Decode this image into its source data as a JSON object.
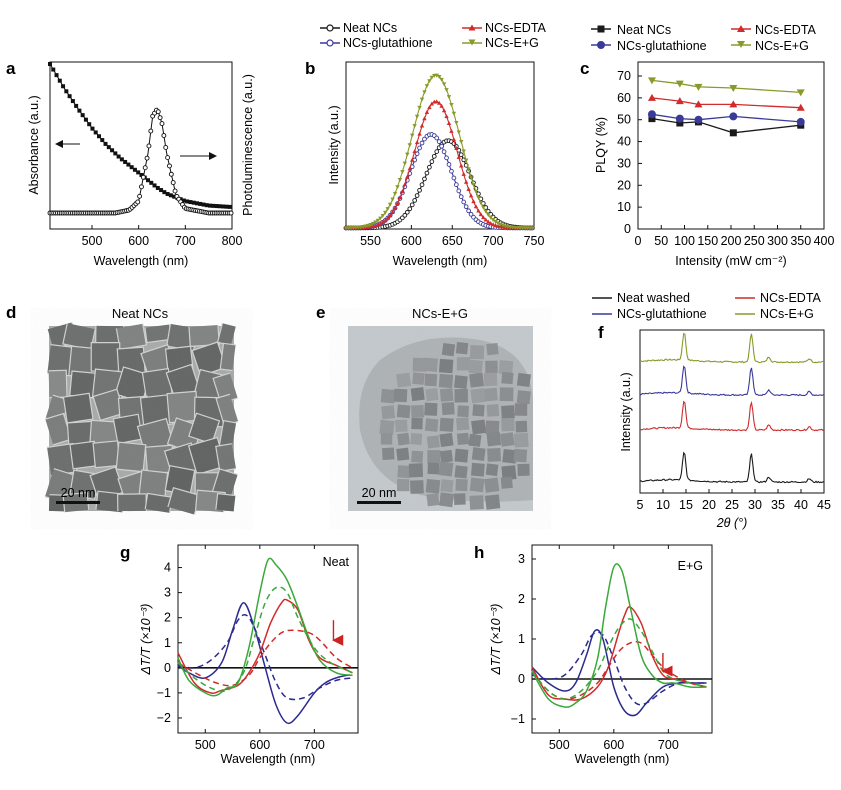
{
  "panels": {
    "a": {
      "letter": "a"
    },
    "b": {
      "letter": "b"
    },
    "c": {
      "letter": "c"
    },
    "d": {
      "letter": "d",
      "title": "Neat NCs",
      "scale_bar": "20 nm"
    },
    "e": {
      "letter": "e",
      "title": "NCs-E+G",
      "scale_bar": "20 nm"
    },
    "f": {
      "letter": "f"
    },
    "g": {
      "letter": "g",
      "inset": "Neat"
    },
    "h": {
      "letter": "h",
      "inset": "E+G"
    }
  },
  "colors": {
    "neat": "#1a1a1a",
    "glutathione": "#3a3a99",
    "edta": "#d12b2b",
    "eg": "#8a9a2a",
    "g_blue": "#2b2b8f",
    "g_red": "#d12b2b",
    "g_green": "#3aa83a",
    "arrow": "#cc2222"
  },
  "legends": {
    "b": [
      "Neat NCs",
      "NCs-EDTA",
      "NCs-glutathione",
      "NCs-E+G"
    ],
    "c": [
      "Neat NCs",
      "NCs-EDTA",
      "NCs-glutathione",
      "NCs-E+G"
    ],
    "f": [
      "Neat washed",
      "NCs-EDTA",
      "NCs-glutathione",
      "NCs-E+G"
    ]
  },
  "chart_data": [
    {
      "id": "a",
      "type": "line",
      "xlabel": "Wavelength (nm)",
      "ylabel_left": "Absorbance (a.u.)",
      "ylabel_right": "Photoluminescence (a.u.)",
      "xlim": [
        410,
        800
      ],
      "xticks": [
        500,
        600,
        700,
        800
      ],
      "series": [
        {
          "name": "Absorbance",
          "x": [
            410,
            440,
            470,
            500,
            530,
            560,
            580,
            600,
            620,
            640,
            660,
            700,
            750,
            800
          ],
          "y": [
            1.0,
            0.84,
            0.7,
            0.57,
            0.46,
            0.37,
            0.32,
            0.27,
            0.22,
            0.17,
            0.13,
            0.08,
            0.05,
            0.04
          ]
        },
        {
          "name": "Photoluminescence",
          "x": [
            410,
            550,
            580,
            600,
            620,
            630,
            640,
            650,
            660,
            680,
            700,
            750,
            800
          ],
          "y": [
            0,
            0,
            0.02,
            0.08,
            0.4,
            0.65,
            0.7,
            0.6,
            0.4,
            0.12,
            0.03,
            0,
            0
          ]
        }
      ]
    },
    {
      "id": "b",
      "type": "line",
      "xlabel": "Wavelength (nm)",
      "ylabel": "Intensity (a.u.)",
      "xlim": [
        520,
        750
      ],
      "xticks": [
        550,
        600,
        650,
        700,
        750
      ],
      "ylim": [
        0,
        1
      ],
      "series": [
        {
          "name": "Neat NCs",
          "peak": 645,
          "width": 27,
          "height": 0.56
        },
        {
          "name": "NCs-glutathione",
          "peak": 624,
          "width": 25,
          "height": 0.6
        },
        {
          "name": "NCs-EDTA",
          "peak": 630,
          "width": 26,
          "height": 0.81
        },
        {
          "name": "NCs-E+G",
          "peak": 630,
          "width": 29,
          "height": 0.98
        }
      ]
    },
    {
      "id": "c",
      "type": "line",
      "xlabel": "Intensity (mW cm⁻²)",
      "ylabel": "PLQY (%)",
      "xlim": [
        0,
        400
      ],
      "ylim": [
        0,
        70
      ],
      "xticks": [
        0,
        50,
        100,
        150,
        200,
        250,
        300,
        350,
        400
      ],
      "yticks": [
        0,
        10,
        20,
        30,
        40,
        50,
        60,
        70
      ],
      "x": [
        30,
        90,
        130,
        205,
        350
      ],
      "series": [
        {
          "name": "Neat NCs",
          "values": [
            50.5,
            48.5,
            49,
            44,
            47.5
          ]
        },
        {
          "name": "NCs-glutathione",
          "values": [
            52.5,
            50.5,
            50,
            51.5,
            49
          ]
        },
        {
          "name": "NCs-EDTA",
          "values": [
            60,
            58.5,
            57,
            57,
            55.5
          ]
        },
        {
          "name": "NCs-E+G",
          "values": [
            68,
            66.5,
            65,
            64.5,
            62.5
          ]
        }
      ]
    },
    {
      "id": "f",
      "type": "line",
      "xlabel": "2θ (°)",
      "ylabel": "Intensity (a.u.)",
      "xlim": [
        5,
        45
      ],
      "xticks": [
        5,
        10,
        15,
        20,
        25,
        30,
        35,
        40,
        45
      ],
      "peaks": [
        {
          "x": 14.6,
          "h": 1.0
        },
        {
          "x": 29.2,
          "h": 1.0
        },
        {
          "x": 33.0,
          "h": 0.18
        },
        {
          "x": 41.8,
          "h": 0.12
        }
      ],
      "series": [
        {
          "name": "NCs-E+G"
        },
        {
          "name": "NCs-glutathione"
        },
        {
          "name": "NCs-EDTA"
        },
        {
          "name": "Neat washed"
        }
      ]
    },
    {
      "id": "g",
      "type": "line",
      "xlabel": "Wavelength (nm)",
      "ylabel": "ΔT/T (×10⁻³)",
      "xlim": [
        450,
        780
      ],
      "ylim": [
        -2.6,
        4.9
      ],
      "xticks": [
        500,
        600,
        700
      ],
      "yticks": [
        -2,
        -1,
        0,
        1,
        2,
        3,
        4
      ],
      "series": [
        {
          "color": "blue",
          "style": "solid",
          "x": [
            450,
            470,
            500,
            530,
            550,
            570,
            590,
            610,
            630,
            650,
            670,
            700,
            720,
            740,
            760,
            770
          ],
          "y": [
            0.1,
            -0.2,
            -0.4,
            0.2,
            1.5,
            2.6,
            1.6,
            0.0,
            -1.5,
            -2.2,
            -1.9,
            -1.0,
            -0.6,
            -0.4,
            -0.3,
            -0.3
          ]
        },
        {
          "color": "blue",
          "style": "dashed",
          "x": [
            450,
            480,
            510,
            540,
            560,
            575,
            590,
            610,
            630,
            650,
            680,
            710,
            740,
            770
          ],
          "y": [
            0.1,
            0.0,
            0.3,
            1.0,
            1.9,
            2.1,
            1.6,
            0.5,
            -0.6,
            -1.2,
            -1.2,
            -0.8,
            -0.5,
            -0.4
          ]
        },
        {
          "color": "red",
          "style": "solid",
          "x": [
            450,
            480,
            510,
            530,
            560,
            580,
            600,
            620,
            640,
            650,
            670,
            690,
            710,
            740,
            760,
            770
          ],
          "y": [
            0.6,
            -0.6,
            -1.0,
            -0.9,
            -0.7,
            -0.2,
            0.6,
            1.8,
            2.6,
            2.7,
            2.3,
            1.1,
            0.4,
            0.1,
            -0.1,
            -0.2
          ]
        },
        {
          "color": "red",
          "style": "dashed",
          "x": [
            450,
            490,
            520,
            550,
            580,
            600,
            620,
            640,
            660,
            690,
            710,
            740,
            770
          ],
          "y": [
            0.2,
            -0.3,
            -0.6,
            -0.7,
            -0.3,
            0.4,
            1.0,
            1.4,
            1.5,
            1.4,
            1.1,
            0.4,
            0.0
          ]
        },
        {
          "color": "green",
          "style": "solid",
          "x": [
            450,
            470,
            500,
            520,
            540,
            560,
            580,
            600,
            615,
            630,
            650,
            670,
            690,
            710,
            740,
            770
          ],
          "y": [
            0.4,
            -0.5,
            -1.0,
            -1.1,
            -0.8,
            -0.6,
            0.8,
            3.0,
            4.3,
            4.1,
            3.5,
            2.4,
            1.2,
            0.3,
            -0.2,
            -0.3
          ]
        },
        {
          "color": "green",
          "style": "dashed",
          "x": [
            450,
            480,
            510,
            540,
            570,
            590,
            610,
            630,
            650,
            670,
            700,
            730,
            760,
            770
          ],
          "y": [
            0.2,
            -0.4,
            -0.8,
            -0.9,
            -0.2,
            1.2,
            2.6,
            3.2,
            3.0,
            2.0,
            0.8,
            0.2,
            -0.1,
            -0.2
          ]
        }
      ],
      "arrow_x": 735,
      "arrow_y_top": 1.9,
      "arrow_y_bottom": 1.1
    },
    {
      "id": "h",
      "type": "line",
      "xlabel": "Wavelength (nm)",
      "ylabel": "ΔT/T (×10⁻³)",
      "xlim": [
        450,
        780
      ],
      "ylim": [
        -1.35,
        3.35
      ],
      "xticks": [
        500,
        600,
        700
      ],
      "yticks": [
        -1,
        0,
        1,
        2,
        3
      ],
      "series": [
        {
          "color": "blue",
          "style": "solid",
          "x": [
            450,
            480,
            510,
            530,
            550,
            565,
            580,
            600,
            620,
            640,
            660,
            690,
            720,
            750,
            770
          ],
          "y": [
            0.3,
            -0.1,
            -0.3,
            -0.1,
            0.6,
            1.2,
            1.0,
            -0.2,
            -0.8,
            -0.9,
            -0.6,
            -0.2,
            -0.1,
            -0.1,
            -0.1
          ]
        },
        {
          "color": "blue",
          "style": "dashed",
          "x": [
            450,
            480,
            510,
            540,
            560,
            580,
            600,
            620,
            640,
            660,
            690,
            720,
            750,
            770
          ],
          "y": [
            0.1,
            0.0,
            0.1,
            0.6,
            1.1,
            1.1,
            0.5,
            -0.2,
            -0.6,
            -0.6,
            -0.3,
            -0.1,
            -0.1,
            -0.1
          ]
        },
        {
          "color": "red",
          "style": "solid",
          "x": [
            450,
            480,
            510,
            540,
            570,
            590,
            610,
            620,
            630,
            650,
            670,
            690,
            710,
            740,
            770
          ],
          "y": [
            0.3,
            -0.4,
            -0.5,
            -0.5,
            -0.2,
            0.3,
            1.2,
            1.6,
            1.8,
            1.4,
            0.6,
            0.1,
            0.0,
            -0.1,
            -0.2
          ]
        },
        {
          "color": "red",
          "style": "dashed",
          "x": [
            450,
            480,
            510,
            540,
            570,
            590,
            610,
            630,
            650,
            670,
            690,
            710,
            740,
            770
          ],
          "y": [
            0.2,
            -0.3,
            -0.5,
            -0.4,
            -0.1,
            0.3,
            0.7,
            0.9,
            0.9,
            0.6,
            0.3,
            0.1,
            -0.1,
            -0.2
          ]
        },
        {
          "color": "green",
          "style": "solid",
          "x": [
            450,
            480,
            510,
            530,
            550,
            570,
            585,
            600,
            615,
            630,
            650,
            670,
            690,
            710,
            740,
            770
          ],
          "y": [
            0.2,
            -0.5,
            -0.7,
            -0.6,
            -0.3,
            0.5,
            1.8,
            2.8,
            2.7,
            1.8,
            0.6,
            0.1,
            -0.1,
            -0.1,
            -0.2,
            -0.2
          ]
        },
        {
          "color": "green",
          "style": "dashed",
          "x": [
            450,
            480,
            510,
            540,
            570,
            590,
            610,
            630,
            650,
            670,
            690,
            710,
            740,
            770
          ],
          "y": [
            0.2,
            -0.3,
            -0.5,
            -0.3,
            0.2,
            0.8,
            1.3,
            1.5,
            1.2,
            0.7,
            0.2,
            0.0,
            -0.1,
            -0.2
          ]
        }
      ],
      "arrow_x": 690,
      "arrow_y_top": 0.65,
      "arrow_y_bottom": 0.2
    }
  ]
}
